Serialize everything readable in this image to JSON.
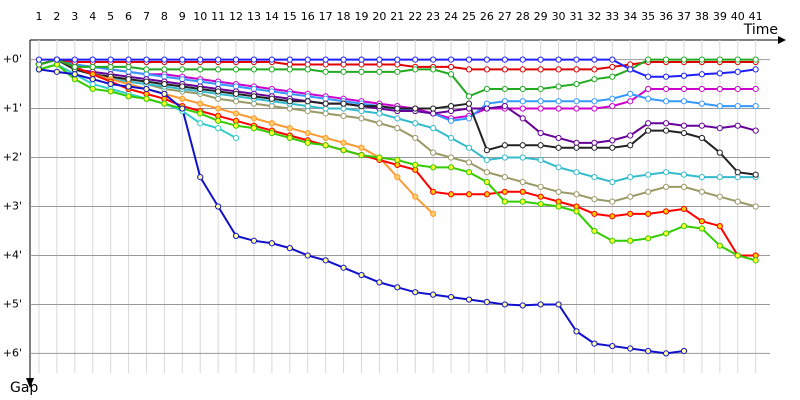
{
  "chart_data": {
    "type": "line",
    "x_label": "Time",
    "y_label": "Gap",
    "x": [
      1,
      2,
      3,
      4,
      5,
      6,
      7,
      8,
      9,
      10,
      11,
      12,
      13,
      14,
      15,
      16,
      17,
      18,
      19,
      20,
      21,
      22,
      23,
      24,
      25,
      26,
      27,
      28,
      29,
      30,
      31,
      32,
      33,
      34,
      35,
      36,
      37,
      38,
      39,
      40,
      41
    ],
    "xlim": [
      0.5,
      41.8
    ],
    "xticks": [
      1,
      2,
      3,
      4,
      5,
      6,
      7,
      8,
      9,
      10,
      11,
      12,
      13,
      14,
      15,
      16,
      17,
      18,
      19,
      20,
      21,
      22,
      23,
      24,
      25,
      26,
      27,
      28,
      29,
      30,
      31,
      32,
      33,
      34,
      35,
      36,
      37,
      38,
      39,
      40,
      41
    ],
    "ylim": [
      -0.4,
      6.4
    ],
    "yticks": [
      {
        "value": 0,
        "label": "+0'"
      },
      {
        "value": 1,
        "label": "+1'"
      },
      {
        "value": 2,
        "label": "+2'"
      },
      {
        "value": 3,
        "label": "+3'"
      },
      {
        "value": 4,
        "label": "+4'"
      },
      {
        "value": 5,
        "label": "+5'"
      },
      {
        "value": 6,
        "label": "+6'"
      }
    ],
    "grid": true,
    "y_inverted": true,
    "series": [
      {
        "color": "#cc00cc",
        "marker_color": "#ffffff",
        "values": [
          0.1,
          0,
          0.1,
          0.15,
          0.2,
          0.25,
          0.3,
          0.3,
          0.35,
          0.4,
          0.45,
          0.5,
          0.55,
          0.6,
          0.65,
          0.7,
          0.75,
          0.8,
          0.85,
          0.9,
          0.95,
          1.0,
          1.1,
          1.2,
          1.15,
          1.0,
          1.0,
          1.0,
          1.0,
          1.0,
          1.0,
          1.0,
          0.95,
          0.85,
          0.6,
          0.6,
          0.6,
          0.6,
          0.6,
          0.6,
          0.6
        ]
      },
      {
        "color": "#3399ff",
        "marker_color": "#ffffff",
        "values": [
          0.1,
          0,
          0.1,
          0.15,
          0.2,
          0.25,
          0.3,
          0.35,
          0.4,
          0.45,
          0.5,
          0.55,
          0.6,
          0.65,
          0.7,
          0.75,
          0.8,
          0.85,
          0.9,
          0.95,
          1.0,
          1.05,
          1.1,
          1.25,
          1.2,
          0.9,
          0.85,
          0.85,
          0.85,
          0.85,
          0.85,
          0.85,
          0.8,
          0.7,
          0.8,
          0.85,
          0.85,
          0.9,
          0.95,
          0.95,
          0.95
        ]
      },
      {
        "color": "#660099",
        "marker_color": "#ffffff",
        "values": [
          0.1,
          0,
          0.2,
          0.25,
          0.3,
          0.35,
          0.4,
          0.45,
          0.5,
          0.55,
          0.6,
          0.65,
          0.7,
          0.75,
          0.8,
          0.85,
          0.9,
          0.9,
          0.95,
          1.0,
          1.05,
          1.05,
          1.1,
          1.05,
          1.0,
          1.0,
          0.95,
          1.2,
          1.5,
          1.6,
          1.7,
          1.7,
          1.65,
          1.55,
          1.3,
          1.3,
          1.35,
          1.35,
          1.4,
          1.35,
          1.45
        ]
      },
      {
        "color": "#999966",
        "marker_color": "#ffffff",
        "values": [
          0.1,
          0,
          0.2,
          0.3,
          0.35,
          0.45,
          0.5,
          0.6,
          0.65,
          0.7,
          0.8,
          0.85,
          0.9,
          0.95,
          1.0,
          1.05,
          1.1,
          1.15,
          1.2,
          1.3,
          1.4,
          1.6,
          1.9,
          2.0,
          2.1,
          2.3,
          2.4,
          2.5,
          2.6,
          2.7,
          2.75,
          2.85,
          2.9,
          2.8,
          2.7,
          2.6,
          2.6,
          2.7,
          2.8,
          2.9,
          3.0
        ]
      },
      {
        "color": "#33bbcc",
        "marker_color": "#ffffff",
        "values": [
          0.1,
          0,
          0.2,
          0.3,
          0.4,
          0.45,
          0.5,
          0.55,
          0.6,
          0.65,
          0.7,
          0.75,
          0.8,
          0.85,
          0.9,
          0.95,
          1.0,
          1.0,
          1.05,
          1.1,
          1.2,
          1.3,
          1.4,
          1.6,
          1.8,
          2.05,
          2.0,
          2.0,
          2.05,
          2.2,
          2.3,
          2.4,
          2.5,
          2.4,
          2.35,
          2.3,
          2.35,
          2.4,
          2.4,
          2.4,
          2.4
        ]
      },
      {
        "color": "#222222",
        "marker_color": "#ffffff",
        "values": [
          0.1,
          0,
          0.2,
          0.3,
          0.35,
          0.4,
          0.45,
          0.5,
          0.55,
          0.6,
          0.65,
          0.7,
          0.75,
          0.8,
          0.85,
          0.85,
          0.9,
          0.9,
          0.95,
          0.95,
          1.0,
          1.0,
          1.0,
          0.95,
          0.9,
          1.85,
          1.75,
          1.75,
          1.75,
          1.8,
          1.8,
          1.8,
          1.8,
          1.75,
          1.45,
          1.45,
          1.5,
          1.6,
          1.9,
          2.3,
          2.35
        ]
      },
      {
        "color": "#ff9933",
        "marker_color": "#ffcc66",
        "values": [
          0.1,
          0,
          0.15,
          0.3,
          0.4,
          0.5,
          0.6,
          0.7,
          0.8,
          0.9,
          1.0,
          1.1,
          1.2,
          1.3,
          1.4,
          1.5,
          1.6,
          1.7,
          1.8,
          2.0,
          2.4,
          2.8,
          3.15,
          null,
          null,
          null,
          null,
          null,
          null,
          null,
          null,
          null,
          null,
          null,
          null,
          null,
          null,
          null,
          null,
          null,
          null
        ]
      },
      {
        "color": "#33cccc",
        "marker_color": "#ffffff",
        "values": [
          0.2,
          0.1,
          0.3,
          0.5,
          0.6,
          0.7,
          0.8,
          0.9,
          1.05,
          1.3,
          1.4,
          1.6,
          null,
          null,
          null,
          null,
          null,
          null,
          null,
          null,
          null,
          null,
          null,
          null,
          null,
          null,
          null,
          null,
          null,
          null,
          null,
          null,
          null,
          null,
          null,
          null,
          null,
          null,
          null,
          null,
          null
        ]
      },
      {
        "color": "#ff0000",
        "marker_color": "#ffcc00",
        "values": [
          0.1,
          0,
          0.15,
          0.3,
          0.45,
          0.6,
          0.7,
          0.8,
          0.95,
          1.05,
          1.15,
          1.25,
          1.35,
          1.45,
          1.55,
          1.65,
          1.75,
          1.85,
          1.95,
          2.05,
          2.15,
          2.25,
          2.7,
          2.75,
          2.75,
          2.75,
          2.7,
          2.7,
          2.8,
          2.9,
          3.0,
          3.15,
          3.2,
          3.15,
          3.15,
          3.1,
          3.05,
          3.3,
          3.4,
          4.0,
          4.0
        ]
      },
      {
        "color": "#33cc00",
        "marker_color": "#ffff33",
        "values": [
          0.2,
          0.1,
          0.4,
          0.6,
          0.65,
          0.75,
          0.8,
          0.9,
          1.0,
          1.1,
          1.25,
          1.35,
          1.4,
          1.5,
          1.6,
          1.7,
          1.75,
          1.85,
          1.95,
          2.0,
          2.05,
          2.15,
          2.2,
          2.2,
          2.3,
          2.5,
          2.9,
          2.9,
          2.95,
          3.0,
          3.1,
          3.5,
          3.7,
          3.7,
          3.65,
          3.55,
          3.4,
          3.45,
          3.8,
          4.0,
          4.1
        ]
      },
      {
        "color": "#1111cc",
        "marker_color": "#ffff99",
        "values": [
          0.2,
          0.25,
          0.3,
          0.4,
          0.5,
          0.55,
          0.6,
          0.7,
          1.0,
          2.4,
          3.0,
          3.6,
          3.7,
          3.75,
          3.85,
          4.0,
          4.1,
          4.25,
          4.4,
          4.55,
          4.65,
          4.75,
          4.8,
          4.85,
          4.9,
          4.95,
          5.0,
          5.02,
          5.0,
          5.0,
          5.55,
          5.8,
          5.85,
          5.9,
          5.95,
          6.0,
          5.95,
          null,
          null,
          null,
          null
        ]
      },
      {
        "color": "#e00000",
        "marker_color": "#ffffff",
        "values": [
          0.1,
          0,
          0.05,
          0.05,
          0.05,
          0.05,
          0.05,
          0.05,
          0.05,
          0.05,
          0.05,
          0.05,
          0.05,
          0.05,
          0.1,
          0.1,
          0.1,
          0.1,
          0.1,
          0.1,
          0.1,
          0.15,
          0.15,
          0.15,
          0.2,
          0.2,
          0.2,
          0.2,
          0.2,
          0.2,
          0.2,
          0.2,
          0.15,
          0.1,
          0.05,
          0.05,
          0.05,
          0.05,
          0.05,
          0.05,
          0.05
        ]
      },
      {
        "color": "#22aa22",
        "marker_color": "#ffffff",
        "values": [
          0.1,
          0,
          0.15,
          0.15,
          0.15,
          0.15,
          0.2,
          0.2,
          0.2,
          0.2,
          0.2,
          0.2,
          0.2,
          0.2,
          0.2,
          0.2,
          0.25,
          0.25,
          0.25,
          0.25,
          0.25,
          0.2,
          0.2,
          0.3,
          0.75,
          0.6,
          0.6,
          0.6,
          0.6,
          0.55,
          0.5,
          0.4,
          0.35,
          0.2,
          0,
          0,
          0,
          0,
          0,
          0,
          0
        ]
      },
      {
        "color": "#1f1fff",
        "marker_color": "#ffffff",
        "values": [
          0,
          0,
          0,
          0,
          0,
          0,
          0,
          0,
          0,
          0,
          0,
          0,
          0,
          0,
          0,
          0,
          0,
          0,
          0,
          0,
          0,
          0,
          0,
          0,
          0,
          0,
          0,
          0,
          0,
          0,
          0,
          0,
          0,
          0.2,
          0.35,
          0.35,
          0.33,
          0.3,
          0.28,
          0.25,
          0.2
        ]
      }
    ]
  }
}
